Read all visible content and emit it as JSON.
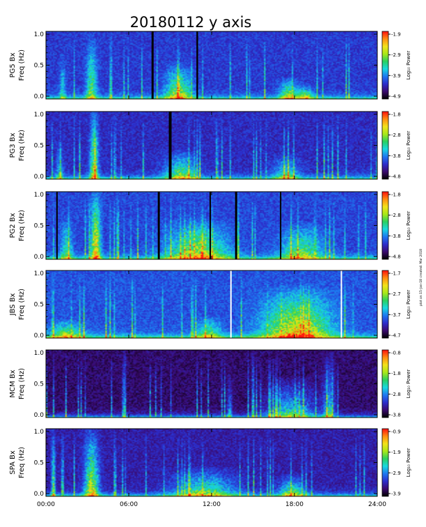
{
  "title": "20180112 y axis",
  "stamp": "plot on 15-Jan-18 created: Mar 2018",
  "chart_data": {
    "type": "heatmap",
    "x_ticks": [
      "00:00",
      "06:00",
      "12:00",
      "18:00",
      "24:00"
    ],
    "x_range_hours": [
      0,
      24
    ],
    "y_range_hz": [
      0,
      1.0
    ],
    "y_ticks": [
      "0.0",
      "0.5",
      "1.0"
    ],
    "colorbar_label": "Log₁₀ Power",
    "colormap": [
      "#000000",
      "#3a0a6e",
      "#2c2dcc",
      "#1e78f0",
      "#18d8e0",
      "#2ad060",
      "#a8e818",
      "#f2e21a",
      "#ff8c10",
      "#ff1010"
    ],
    "panels": [
      {
        "station": "PG5 Bx",
        "ylabel": "Freq (Hz)",
        "colorbar_ticks": [
          "-1.9",
          "-2.9",
          "-3.9",
          "-4.9"
        ],
        "background_level": 0.18,
        "gaps": [
          {
            "start": 7.65,
            "end": 7.8,
            "color": "#000000"
          },
          {
            "start": 10.9,
            "end": 11.02,
            "color": "#000000"
          }
        ],
        "features": [
          {
            "center": 3.3,
            "width": 0.9,
            "max_hz": 0.9,
            "intensity": 0.45
          },
          {
            "center": 9.6,
            "width": 2.2,
            "max_hz": 0.5,
            "intensity": 0.55
          },
          {
            "center": 17.6,
            "width": 1.5,
            "max_hz": 0.3,
            "intensity": 0.5
          },
          {
            "center": 18.8,
            "width": 1.2,
            "max_hz": 0.2,
            "intensity": 0.5
          },
          {
            "center": 1.2,
            "width": 0.5,
            "max_hz": 0.6,
            "intensity": 0.3
          }
        ]
      },
      {
        "station": "PG3 Bx",
        "ylabel": "Freq (Hz)",
        "colorbar_ticks": [
          "-1.8",
          "-2.8",
          "-3.8",
          "-4.8"
        ],
        "background_level": 0.15,
        "gaps": [
          {
            "start": 8.9,
            "end": 9.1,
            "color": "#000000"
          }
        ],
        "features": [
          {
            "center": 3.5,
            "width": 0.7,
            "max_hz": 1.0,
            "intensity": 0.65
          },
          {
            "center": 9.8,
            "width": 2.6,
            "max_hz": 0.4,
            "intensity": 0.5
          },
          {
            "center": 17.4,
            "width": 2.0,
            "max_hz": 0.35,
            "intensity": 0.4
          },
          {
            "center": 1.0,
            "width": 0.6,
            "max_hz": 0.5,
            "intensity": 0.3
          }
        ]
      },
      {
        "station": "PG2 Bx",
        "ylabel": "Freq (Hz)",
        "colorbar_ticks": [
          "-1.8",
          "-2.8",
          "-3.8",
          "-4.8"
        ],
        "background_level": 0.2,
        "gaps": [
          {
            "start": 0.75,
            "end": 0.85,
            "color": "#000000"
          },
          {
            "start": 8.1,
            "end": 8.25,
            "color": "#000000"
          },
          {
            "start": 11.85,
            "end": 11.95,
            "color": "#000000"
          },
          {
            "start": 13.7,
            "end": 13.85,
            "color": "#000000"
          },
          {
            "start": 16.95,
            "end": 17.05,
            "color": "#000000"
          }
        ],
        "features": [
          {
            "center": 3.6,
            "width": 0.8,
            "max_hz": 1.0,
            "intensity": 0.7
          },
          {
            "center": 11.0,
            "width": 5.0,
            "max_hz": 0.55,
            "intensity": 0.55
          },
          {
            "center": 18.5,
            "width": 3.5,
            "max_hz": 0.5,
            "intensity": 0.45
          },
          {
            "center": 1.5,
            "width": 1.0,
            "max_hz": 0.6,
            "intensity": 0.35
          }
        ]
      },
      {
        "station": "JBS Bx",
        "ylabel": "Freq (Hz)",
        "colorbar_ticks": [
          "-1.7",
          "-2.7",
          "-3.7",
          "-4.7"
        ],
        "background_level": 0.22,
        "gaps": [
          {
            "start": 13.35,
            "end": 13.45,
            "color": "#ffffff"
          },
          {
            "start": 21.35,
            "end": 21.45,
            "color": "#ffffff"
          }
        ],
        "features": [
          {
            "center": 18.2,
            "width": 5.5,
            "max_hz": 0.7,
            "intensity": 0.65
          },
          {
            "center": 1.5,
            "width": 2.5,
            "max_hz": 0.25,
            "intensity": 0.45
          },
          {
            "center": 11.8,
            "width": 2.0,
            "max_hz": 0.3,
            "intensity": 0.4
          }
        ]
      },
      {
        "station": "MCM Bx",
        "ylabel": "Freq (Hz)",
        "colorbar_ticks": [
          "-0.8",
          "-1.8",
          "-2.8",
          "-3.8"
        ],
        "background_level": 0.05,
        "gaps": [],
        "features": [
          {
            "center": 5.7,
            "width": 0.2,
            "max_hz": 1.0,
            "intensity": 0.55
          },
          {
            "center": 15.0,
            "width": 0.2,
            "max_hz": 1.0,
            "intensity": 0.55
          },
          {
            "center": 17.8,
            "width": 4.0,
            "max_hz": 0.55,
            "intensity": 0.45
          },
          {
            "center": 20.5,
            "width": 1.0,
            "max_hz": 0.9,
            "intensity": 0.4
          },
          {
            "center": 13.3,
            "width": 0.4,
            "max_hz": 0.6,
            "intensity": 0.35
          }
        ]
      },
      {
        "station": "SPA Bx",
        "ylabel": "Freq (Hz)",
        "colorbar_ticks": [
          "-0.9",
          "-1.9",
          "-2.9",
          "-3.9"
        ],
        "background_level": 0.12,
        "gaps": [],
        "features": [
          {
            "center": 3.3,
            "width": 1.2,
            "max_hz": 1.0,
            "intensity": 0.65
          },
          {
            "center": 11.5,
            "width": 5.0,
            "max_hz": 0.4,
            "intensity": 0.5
          },
          {
            "center": 17.8,
            "width": 2.0,
            "max_hz": 0.3,
            "intensity": 0.55
          },
          {
            "center": 0.5,
            "width": 0.3,
            "max_hz": 1.0,
            "intensity": 0.4
          }
        ]
      }
    ]
  }
}
